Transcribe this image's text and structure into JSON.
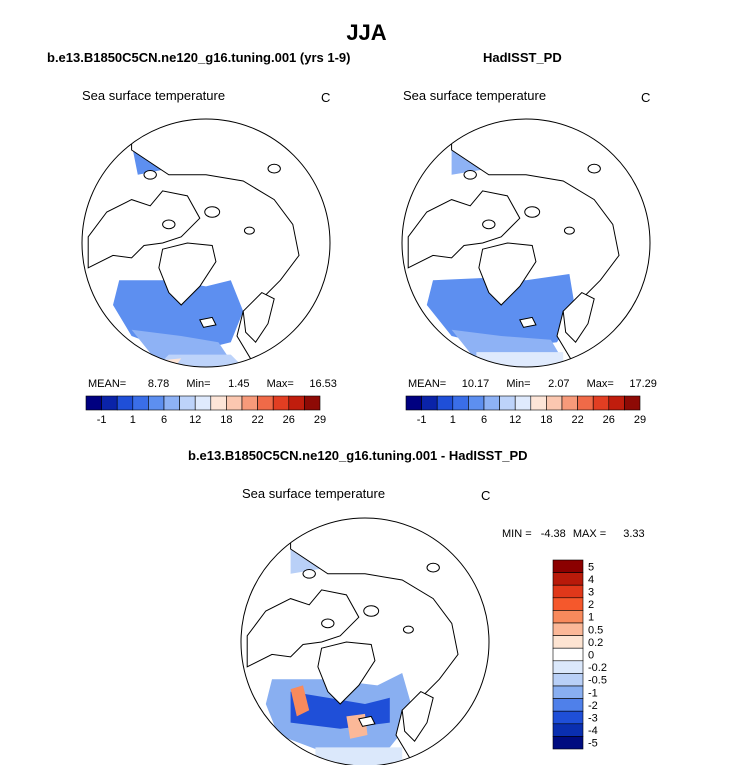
{
  "page": {
    "title": "JJA",
    "subtitle_bottom": "b.e13.B1850C5CN.ne120_g16.tuning.001 - HadISST_PD"
  },
  "chart_data": [
    {
      "type": "heatmap",
      "panel_title": "b.e13.B1850C5CN.ne120_g16.tuning.001 (yrs 1-9)",
      "field": "Sea surface temperature",
      "units": "C",
      "stats": {
        "mean_label": "MEAN=",
        "mean": "8.78",
        "min_label": "Min=",
        "min": "1.45",
        "max_label": "Max=",
        "max": "16.53"
      },
      "levels": [
        "-1",
        "1",
        "6",
        "12",
        "18",
        "22",
        "26",
        "29"
      ]
    },
    {
      "type": "heatmap",
      "panel_title": "HadISST_PD",
      "field": "Sea surface temperature",
      "units": "C",
      "stats": {
        "mean_label": "MEAN=",
        "mean": "10.17",
        "min_label": "Min=",
        "min": "2.07",
        "max_label": "Max=",
        "max": "17.29"
      },
      "levels": [
        "-1",
        "1",
        "6",
        "12",
        "18",
        "22",
        "26",
        "29"
      ]
    },
    {
      "type": "heatmap",
      "panel_title": "b.e13.B1850C5CN.ne120_g16.tuning.001 - HadISST_PD",
      "field": "Sea surface temperature",
      "units": "C",
      "stats": {
        "min_label": "MIN =",
        "min": "-4.38",
        "max_label": "MAX =",
        "max": "3.33"
      },
      "levels": [
        "5",
        "4",
        "3",
        "2",
        "1",
        "0.5",
        "0.2",
        "0",
        "-0.2",
        "-0.5",
        "-1",
        "-2",
        "-3",
        "-4",
        "-5"
      ]
    }
  ],
  "colors": {
    "abs_scale": [
      "#000080",
      "#0a23a8",
      "#1f4fd8",
      "#3a6ee8",
      "#5d8ff0",
      "#8eb2f5",
      "#bdd3fa",
      "#dfeafd",
      "#fde5d8",
      "#fbc7b0",
      "#f79a7a",
      "#f06a48",
      "#e23e22",
      "#c01d0d",
      "#8e0a05"
    ],
    "diff_scale": [
      "#8b0000",
      "#b81a0a",
      "#e0381a",
      "#f5582c",
      "#f88a5c",
      "#fbb898",
      "#fde4d2",
      "#ffffff",
      "#dbe8fb",
      "#b9d0f7",
      "#89aff1",
      "#4f80ea",
      "#1f4fd8",
      "#0a2fb0",
      "#000c80"
    ],
    "land": "#ffffff",
    "coast": "#000000"
  }
}
